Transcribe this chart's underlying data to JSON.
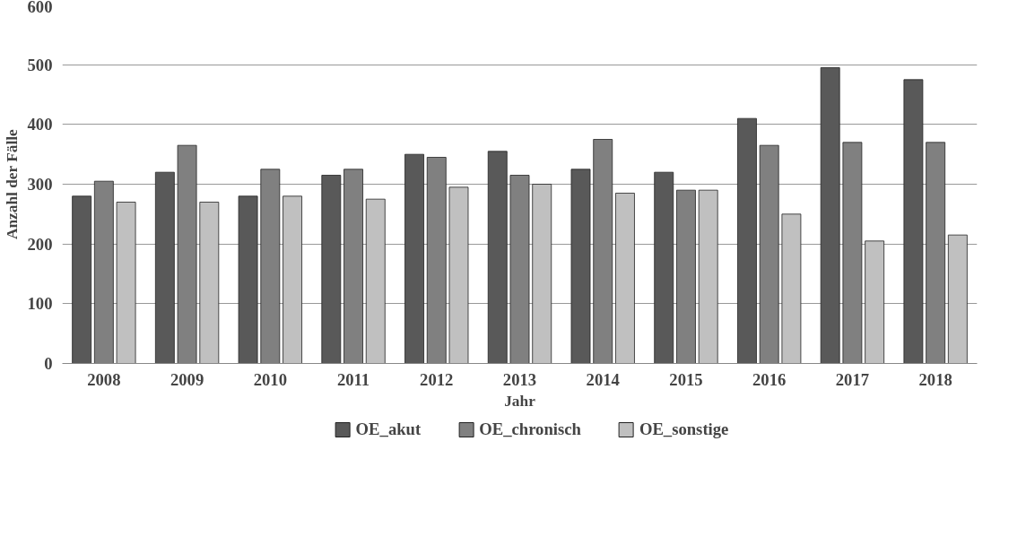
{
  "chart_data": {
    "type": "bar",
    "xlabel": "Jahr",
    "ylabel": "Anzahl der Fälle",
    "categories": [
      "2008",
      "2009",
      "2010",
      "2011",
      "2012",
      "2013",
      "2014",
      "2015",
      "2016",
      "2017",
      "2018"
    ],
    "series": [
      {
        "name": "OE_akut",
        "color": "#595959",
        "values": [
          280,
          320,
          280,
          315,
          350,
          355,
          325,
          320,
          410,
          495,
          475
        ]
      },
      {
        "name": "OE_chronisch",
        "color": "#808080",
        "values": [
          305,
          365,
          325,
          325,
          345,
          315,
          375,
          290,
          365,
          370,
          370
        ]
      },
      {
        "name": "OE_sonstige",
        "color": "#c0c0c0",
        "values": [
          270,
          270,
          280,
          275,
          295,
          300,
          285,
          290,
          250,
          205,
          215
        ]
      }
    ],
    "ylim": [
      0,
      600
    ],
    "yticks": [
      0,
      100,
      200,
      300,
      400,
      500,
      600
    ],
    "grid": "y",
    "legend": "bottom"
  }
}
